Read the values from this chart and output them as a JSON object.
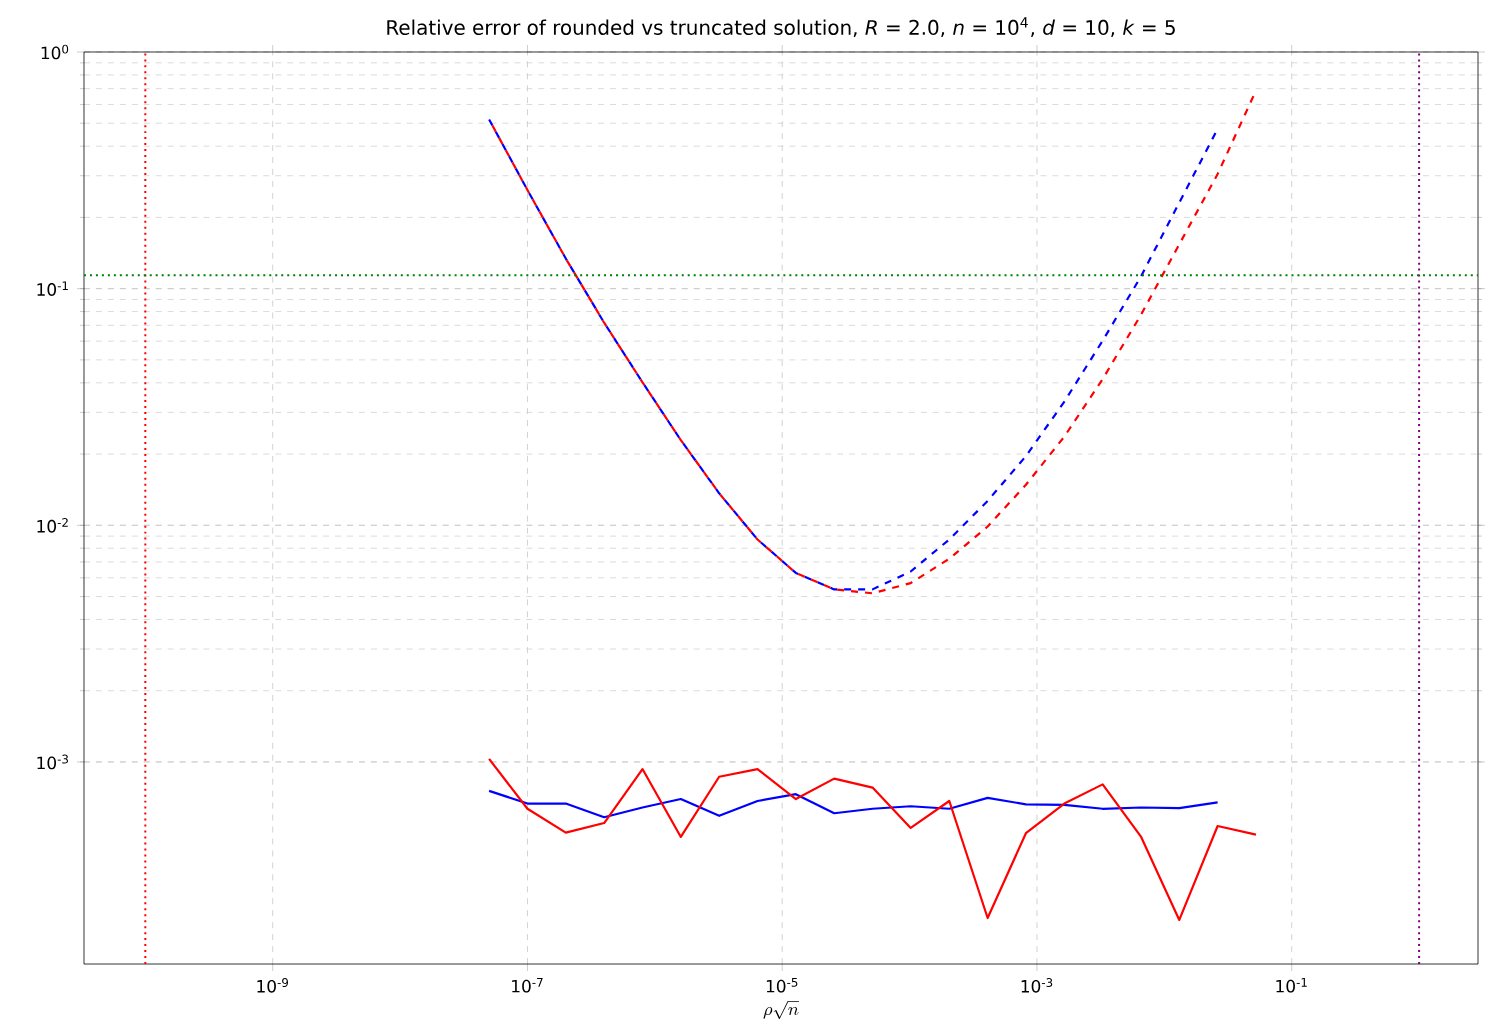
{
  "chart_data": {
    "type": "line",
    "title": "Relative error of rounded vs truncated solution, *R* = 2.0, *n* = 10$^{4}$, *d* = 10, *k* = 5",
    "xlabel": "\\rho\\sqrt{n}",
    "log": "xy",
    "grid": true,
    "xlim": [
      3.3e-11,
      2.9
    ],
    "ylim": [
      0.00014,
      1
    ],
    "xticks": [
      {
        "value": 1e-09,
        "label": "10$^{-9}$"
      },
      {
        "value": 1e-07,
        "label": "10$^{-7}$"
      },
      {
        "value": 1e-05,
        "label": "10$^{-5}$"
      },
      {
        "value": 0.001,
        "label": "10$^{-3}$"
      },
      {
        "value": 0.1,
        "label": "10$^{-1}$"
      }
    ],
    "yticks": [
      {
        "value": 0.001,
        "label": "10$^{-3}$"
      },
      {
        "value": 0.01,
        "label": "10$^{-2}$"
      },
      {
        "value": 0.1,
        "label": "10$^{-1}$"
      },
      {
        "value": 1,
        "label": "10$^{0}$"
      }
    ],
    "x": [
      5e-08,
      1e-07,
      2e-07,
      4e-07,
      8e-07,
      1.6e-06,
      3.2e-06,
      6.4e-06,
      1.28e-05,
      2.56e-05,
      5.12e-05,
      0.000102,
      0.000205,
      0.00041,
      0.000819,
      0.00164,
      0.00328,
      0.00655,
      0.0131,
      0.0262,
      0.0524
    ],
    "series": [
      {
        "color": "#0000ff",
        "line_style": "dashed",
        "values": [
          0.519,
          0.261,
          0.134,
          0.0718,
          0.0402,
          0.0229,
          0.01365,
          0.00871,
          0.00629,
          0.00536,
          0.00536,
          0.00638,
          0.00871,
          0.01268,
          0.0196,
          0.0333,
          0.0603,
          0.1125,
          0.231,
          0.473,
          null
        ]
      },
      {
        "color": "#ff0000",
        "line_style": "dashed",
        "values": [
          0.519,
          0.261,
          0.134,
          0.0718,
          0.0402,
          0.0229,
          0.01365,
          0.00871,
          0.00629,
          0.00536,
          0.00516,
          0.0057,
          0.00723,
          0.00988,
          0.01483,
          0.0237,
          0.0415,
          0.0775,
          0.154,
          0.305,
          0.687
        ]
      },
      {
        "color": "#0000ff",
        "line_style": "solid",
        "values": [
          0.000755,
          0.000667,
          0.000667,
          0.000584,
          0.000642,
          0.000697,
          0.000592,
          0.000684,
          0.000731,
          0.000607,
          0.000634,
          0.00065,
          0.000634,
          0.000705,
          0.000662,
          0.000659,
          0.000634,
          0.000642,
          0.000638,
          0.000675,
          null
        ]
      },
      {
        "color": "#ff0000",
        "line_style": "solid",
        "values": [
          0.00103,
          0.000634,
          0.000503,
          0.000552,
          0.000933,
          0.000482,
          0.000866,
          0.000933,
          0.000697,
          0.00085,
          0.000779,
          0.000526,
          0.000684,
          0.000219,
          0.0005,
          0.000667,
          0.000804,
          0.000484,
          0.000215,
          0.000536,
          0.000493
        ]
      }
    ],
    "ref_lines": [
      {
        "axis": "x",
        "value": 1e-10,
        "color": "#ff0000",
        "line_style": "dotted"
      },
      {
        "axis": "x",
        "value": 1,
        "color": "#800080",
        "line_style": "dotted"
      },
      {
        "axis": "y",
        "value": 0.114,
        "color": "#008000",
        "line_style": "dotted"
      }
    ]
  }
}
